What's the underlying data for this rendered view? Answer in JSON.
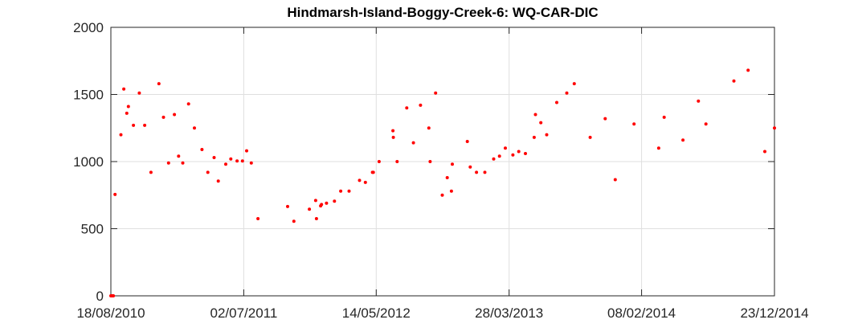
{
  "chart_data": {
    "type": "scatter",
    "title": "Hindmarsh-Island-Boggy-Creek-6: WQ-CAR-DIC",
    "xlabel": "",
    "ylabel": "",
    "x_scale": "date",
    "xlim": [
      "18/08/2010",
      "23/12/2014"
    ],
    "ylim": [
      0,
      2000
    ],
    "x_ticks": [
      "18/08/2010",
      "02/07/2011",
      "14/05/2012",
      "28/03/2013",
      "08/02/2014",
      "23/12/2014"
    ],
    "y_ticks": [
      0,
      500,
      1000,
      1500,
      2000
    ],
    "grid": true,
    "marker_color": "#ff0000",
    "series": [
      {
        "points": [
          [
            "18/08/2010",
            0
          ],
          [
            "19/08/2010",
            0
          ],
          [
            "20/08/2010",
            0
          ],
          [
            "21/08/2010",
            0
          ],
          [
            "22/08/2010",
            0
          ],
          [
            "23/08/2010",
            0
          ],
          [
            "24/08/2010",
            0
          ],
          [
            "28/08/2010",
            755
          ],
          [
            "11/09/2010",
            1200
          ],
          [
            "18/09/2010",
            1540
          ],
          [
            "25/09/2010",
            1360
          ],
          [
            "29/09/2010",
            1410
          ],
          [
            "11/10/2010",
            1270
          ],
          [
            "25/10/2010",
            1510
          ],
          [
            "07/11/2010",
            1270
          ],
          [
            "22/11/2010",
            920
          ],
          [
            "11/12/2010",
            1580
          ],
          [
            "22/12/2010",
            1330
          ],
          [
            "03/01/2011",
            990
          ],
          [
            "17/01/2011",
            1350
          ],
          [
            "27/01/2011",
            1040
          ],
          [
            "06/02/2011",
            990
          ],
          [
            "20/02/2011",
            1430
          ],
          [
            "06/03/2011",
            1250
          ],
          [
            "24/03/2011",
            1090
          ],
          [
            "07/04/2011",
            920
          ],
          [
            "22/04/2011",
            1030
          ],
          [
            "02/05/2011",
            855
          ],
          [
            "20/05/2011",
            980
          ],
          [
            "01/06/2011",
            1020
          ],
          [
            "16/06/2011",
            1005
          ],
          [
            "29/06/2011",
            1005
          ],
          [
            "09/07/2011",
            1080
          ],
          [
            "20/07/2011",
            990
          ],
          [
            "05/08/2011",
            575
          ],
          [
            "15/10/2011",
            665
          ],
          [
            "30/10/2011",
            555
          ],
          [
            "06/12/2011",
            645
          ],
          [
            "21/12/2011",
            710
          ],
          [
            "23/12/2011",
            575
          ],
          [
            "02/01/2012",
            670
          ],
          [
            "04/01/2012",
            680
          ],
          [
            "16/01/2012",
            690
          ],
          [
            "04/02/2012",
            705
          ],
          [
            "19/02/2012",
            780
          ],
          [
            "10/03/2012",
            780
          ],
          [
            "04/04/2012",
            860
          ],
          [
            "18/04/2012",
            845
          ],
          [
            "05/05/2012",
            920
          ],
          [
            "07/05/2012",
            920
          ],
          [
            "21/05/2012",
            1000
          ],
          [
            "23/06/2012",
            1230
          ],
          [
            "24/06/2012",
            1180
          ],
          [
            "03/07/2012",
            1000
          ],
          [
            "26/07/2012",
            1400
          ],
          [
            "11/08/2012",
            1140
          ],
          [
            "28/08/2012",
            1420
          ],
          [
            "17/09/2012",
            1250
          ],
          [
            "20/09/2012",
            1000
          ],
          [
            "03/10/2012",
            1510
          ],
          [
            "19/10/2012",
            750
          ],
          [
            "31/10/2012",
            880
          ],
          [
            "10/11/2012",
            780
          ],
          [
            "12/11/2012",
            980
          ],
          [
            "18/12/2012",
            1150
          ],
          [
            "25/12/2012",
            960
          ],
          [
            "09/01/2013",
            920
          ],
          [
            "29/01/2013",
            920
          ],
          [
            "19/02/2013",
            1020
          ],
          [
            "05/03/2013",
            1040
          ],
          [
            "19/03/2013",
            1100
          ],
          [
            "06/04/2013",
            1050
          ],
          [
            "20/04/2013",
            1075
          ],
          [
            "06/05/2013",
            1060
          ],
          [
            "27/05/2013",
            1180
          ],
          [
            "30/05/2013",
            1350
          ],
          [
            "12/06/2013",
            1290
          ],
          [
            "26/06/2013",
            1200
          ],
          [
            "20/07/2013",
            1440
          ],
          [
            "13/08/2013",
            1510
          ],
          [
            "31/08/2013",
            1580
          ],
          [
            "08/10/2013",
            1180
          ],
          [
            "13/11/2013",
            1320
          ],
          [
            "07/12/2013",
            865
          ],
          [
            "21/01/2014",
            1280
          ],
          [
            "21/03/2014",
            1100
          ],
          [
            "03/04/2014",
            1330
          ],
          [
            "18/05/2014",
            1160
          ],
          [
            "24/06/2014",
            1450
          ],
          [
            "12/07/2014",
            1280
          ],
          [
            "17/09/2014",
            1600
          ],
          [
            "21/10/2014",
            1680
          ],
          [
            "30/11/2014",
            1075
          ],
          [
            "23/12/2014",
            1250
          ]
        ]
      }
    ]
  }
}
